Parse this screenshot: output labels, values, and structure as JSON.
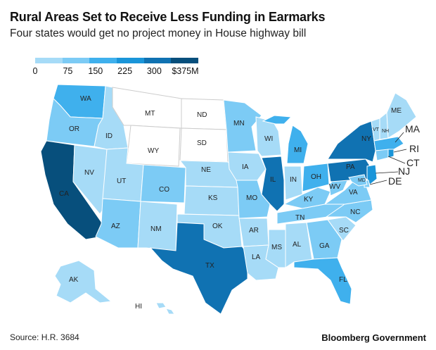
{
  "title": "Rural Areas Set to Receive Less Funding in Earmarks",
  "subtitle": "Four states would get no project money in House highway bill",
  "legend": {
    "ticks": [
      "0",
      "75",
      "150",
      "225",
      "300",
      "$375M"
    ],
    "colors": [
      "#a6dbf7",
      "#7ccbf5",
      "#3fb0ed",
      "#1a95d9",
      "#1072b2",
      "#074f7c"
    ]
  },
  "colors": {
    "zero": "#ffffff",
    "c1": "#a6dbf7",
    "c2": "#7ccbf5",
    "c3": "#3fb0ed",
    "c4": "#1a95d9",
    "c5": "#1072b2",
    "c6": "#074f7c",
    "border": "#ffffff",
    "zero_border": "#cccccc"
  },
  "states": {
    "WA": "WA",
    "OR": "OR",
    "CA": "CA",
    "NV": "NV",
    "ID": "ID",
    "MT": "MT",
    "WY": "WY",
    "UT": "UT",
    "AZ": "AZ",
    "CO": "CO",
    "NM": "NM",
    "ND": "ND",
    "SD": "SD",
    "NE": "NE",
    "KS": "KS",
    "OK": "OK",
    "TX": "TX",
    "MN": "MN",
    "IA": "IA",
    "MO": "MO",
    "AR": "AR",
    "LA": "LA",
    "WI": "WI",
    "IL": "IL",
    "MS": "MS",
    "MI": "MI",
    "IN": "IN",
    "KY": "KY",
    "TN": "TN",
    "AL": "AL",
    "OH": "OH",
    "GA": "GA",
    "FL": "FL",
    "SC": "SC",
    "NC": "NC",
    "VA": "VA",
    "WV": "WV",
    "PA": "PA",
    "NY": "NY",
    "VT": "VT",
    "NH": "NH",
    "ME": "ME",
    "MA": "MA",
    "RI": "RI",
    "CT": "CT",
    "NJ": "NJ",
    "DE": "DE",
    "MD": "MD",
    "AK": "AK",
    "HI": "HI"
  },
  "source": "Source: H.R. 3684",
  "brand": "Bloomberg Government"
}
